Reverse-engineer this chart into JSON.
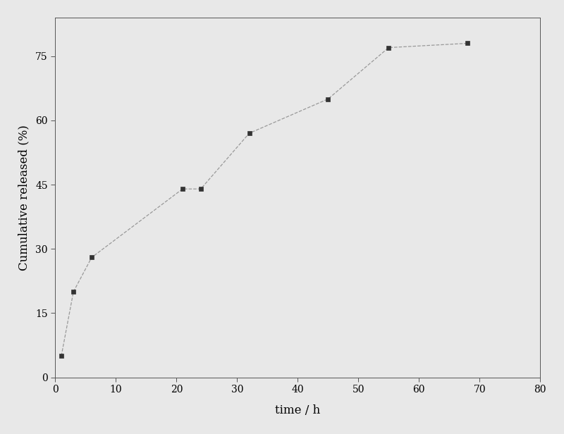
{
  "x": [
    1,
    3,
    6,
    21,
    24,
    32,
    45,
    55,
    68
  ],
  "y": [
    5,
    20,
    28,
    44,
    44,
    57,
    65,
    77,
    78
  ],
  "line_color": "#999999",
  "marker_color": "#333333",
  "marker_style": "s",
  "marker_size": 5,
  "line_style": "--",
  "line_width": 0.9,
  "xlabel": "time / h",
  "ylabel": "Cumulative released (%)",
  "xlim": [
    0,
    80
  ],
  "ylim": [
    0,
    84
  ],
  "xticks": [
    0,
    10,
    20,
    30,
    40,
    50,
    60,
    70,
    80
  ],
  "yticks": [
    0,
    15,
    30,
    45,
    60,
    75
  ],
  "background_color": "#e8e8e8",
  "label_fontsize": 12,
  "tick_fontsize": 10
}
